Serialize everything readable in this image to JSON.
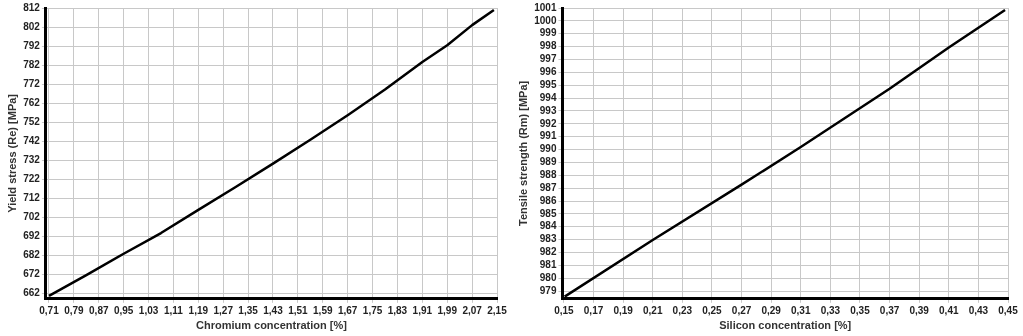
{
  "chart_data": [
    {
      "type": "line",
      "xlabel": "Chromium concentration [%]",
      "ylabel": "Yield stress (Re) [MPa]",
      "series": [
        {
          "color": "#000000",
          "x": [
            0.71,
            0.83,
            0.95,
            1.07,
            1.19,
            1.31,
            1.43,
            1.55,
            1.67,
            1.79,
            1.91,
            1.99,
            2.07,
            2.14
          ],
          "values": [
            660.5,
            671.5,
            682.7,
            693.6,
            705.8,
            717.8,
            730.1,
            742.7,
            755.6,
            769.1,
            783.6,
            792.4,
            803,
            811
          ]
        }
      ],
      "xlim": [
        0.7,
        2.15
      ],
      "ylim": [
        659,
        812
      ],
      "xticks": [
        {
          "value": 0.71,
          "label": "0,71"
        },
        {
          "value": 0.79,
          "label": "0,79"
        },
        {
          "value": 0.87,
          "label": "0,87"
        },
        {
          "value": 0.95,
          "label": "0,95"
        },
        {
          "value": 1.03,
          "label": "1,03"
        },
        {
          "value": 1.11,
          "label": "1,11"
        },
        {
          "value": 1.19,
          "label": "1,19"
        },
        {
          "value": 1.27,
          "label": "1,27"
        },
        {
          "value": 1.35,
          "label": "1,35"
        },
        {
          "value": 1.43,
          "label": "1,43"
        },
        {
          "value": 1.51,
          "label": "1,51"
        },
        {
          "value": 1.59,
          "label": "1,59"
        },
        {
          "value": 1.67,
          "label": "1,67"
        },
        {
          "value": 1.75,
          "label": "1,75"
        },
        {
          "value": 1.83,
          "label": "1,83"
        },
        {
          "value": 1.91,
          "label": "1,91"
        },
        {
          "value": 1.99,
          "label": "1,99"
        },
        {
          "value": 2.07,
          "label": "2,07"
        },
        {
          "value": 2.15,
          "label": "2,15"
        }
      ],
      "yticks": [
        662,
        672,
        682,
        692,
        702,
        712,
        722,
        732,
        742,
        752,
        762,
        772,
        782,
        792,
        802,
        812
      ],
      "grid": true,
      "legend": false,
      "marker": "none",
      "line_style": "solid"
    },
    {
      "type": "line",
      "xlabel": "Silicon concentration [%]",
      "ylabel": "Tensile strength (Rm) [MPa]",
      "series": [
        {
          "color": "#000000",
          "x": [
            0.1505,
            0.21,
            0.27,
            0.31,
            0.37,
            0.41,
            0.448
          ],
          "values": [
            978.57,
            982.97,
            987.27,
            990.2,
            994.73,
            997.93,
            1000.84
          ]
        }
      ],
      "xlim": [
        0.149,
        0.45
      ],
      "ylim": [
        978.4,
        1001
      ],
      "xticks": [
        {
          "value": 0.15,
          "label": "0,15"
        },
        {
          "value": 0.17,
          "label": "0,17"
        },
        {
          "value": 0.19,
          "label": "0,19"
        },
        {
          "value": 0.21,
          "label": "0,21"
        },
        {
          "value": 0.23,
          "label": "0,23"
        },
        {
          "value": 0.25,
          "label": "0,25"
        },
        {
          "value": 0.27,
          "label": "0,27"
        },
        {
          "value": 0.29,
          "label": "0,29"
        },
        {
          "value": 0.31,
          "label": "0,31"
        },
        {
          "value": 0.33,
          "label": "0,33"
        },
        {
          "value": 0.35,
          "label": "0,35"
        },
        {
          "value": 0.37,
          "label": "0,37"
        },
        {
          "value": 0.39,
          "label": "0,39"
        },
        {
          "value": 0.41,
          "label": "0,41"
        },
        {
          "value": 0.43,
          "label": "0,43"
        },
        {
          "value": 0.45,
          "label": "0,45"
        }
      ],
      "yticks": [
        979,
        980,
        981,
        982,
        983,
        984,
        985,
        986,
        987,
        988,
        989,
        990,
        991,
        992,
        993,
        994,
        995,
        996,
        997,
        998,
        999,
        1000,
        1001
      ],
      "grid": true,
      "legend": false,
      "marker": "none",
      "line_style": "solid"
    }
  ]
}
